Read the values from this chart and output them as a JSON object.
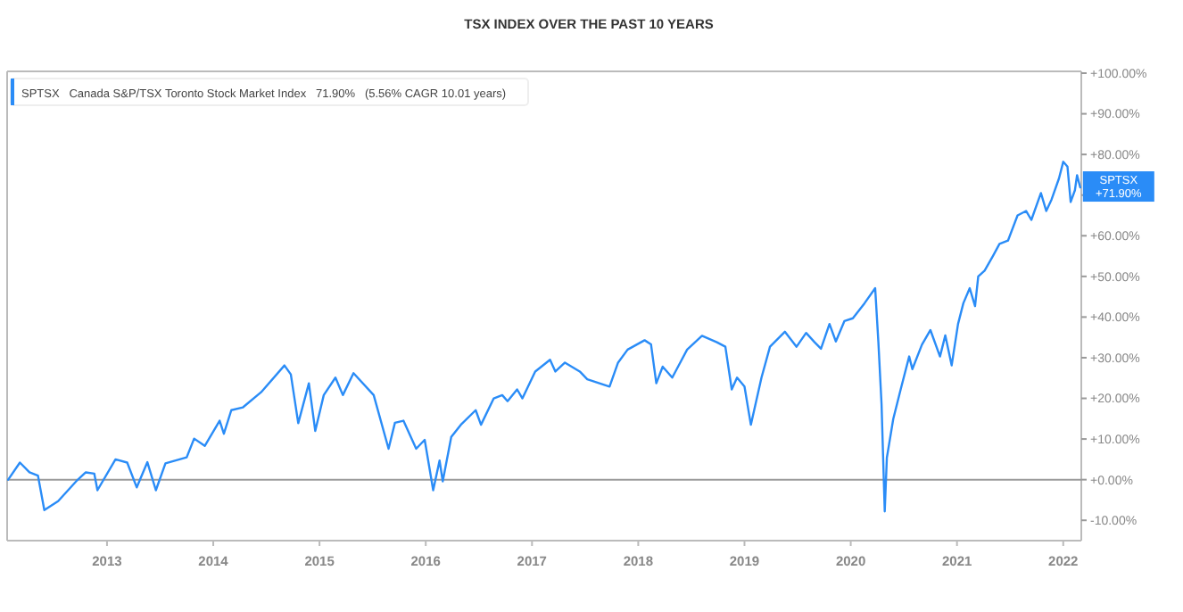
{
  "chart_data": {
    "type": "line",
    "title": "TSX INDEX OVER THE PAST 10 YEARS",
    "x": [
      2012.07,
      2012.18,
      2012.27,
      2012.35,
      2012.41,
      2012.54,
      2012.71,
      2012.8,
      2012.88,
      2012.91,
      2013.08,
      2013.19,
      2013.28,
      2013.38,
      2013.46,
      2013.55,
      2013.75,
      2013.82,
      2013.92,
      2014.06,
      2014.1,
      2014.17,
      2014.28,
      2014.45,
      2014.67,
      2014.73,
      2014.8,
      2014.9,
      2014.96,
      2015.04,
      2015.15,
      2015.22,
      2015.32,
      2015.51,
      2015.65,
      2015.71,
      2015.79,
      2015.91,
      2015.99,
      2016.07,
      2016.13,
      2016.16,
      2016.24,
      2016.33,
      2016.47,
      2016.52,
      2016.64,
      2016.72,
      2016.77,
      2016.86,
      2016.91,
      2017.03,
      2017.17,
      2017.22,
      2017.31,
      2017.45,
      2017.52,
      2017.73,
      2017.81,
      2017.9,
      2018.06,
      2018.12,
      2018.17,
      2018.23,
      2018.32,
      2018.46,
      2018.6,
      2018.74,
      2018.82,
      2018.88,
      2018.93,
      2019.0,
      2019.06,
      2019.16,
      2019.24,
      2019.38,
      2019.49,
      2019.58,
      2019.66,
      2019.72,
      2019.8,
      2019.86,
      2019.94,
      2020.02,
      2020.13,
      2020.23,
      2020.26,
      2020.29,
      2020.32,
      2020.34,
      2020.4,
      2020.47,
      2020.55,
      2020.58,
      2020.67,
      2020.75,
      2020.84,
      2020.89,
      2020.95,
      2021.01,
      2021.06,
      2021.12,
      2021.17,
      2021.2,
      2021.26,
      2021.34,
      2021.4,
      2021.48,
      2021.57,
      2021.65,
      2021.7,
      2021.79,
      2021.84,
      2021.89,
      2021.96,
      2022.0,
      2022.04,
      2022.07,
      2022.11,
      2022.13,
      2022.16
    ],
    "series": [
      {
        "name": "SPTSX   Canada S&P/TSX Toronto Stock Market Index   71.90%   (5.56% CAGR 10.01 years)",
        "color": "#2a8cf7",
        "values": [
          0,
          4.2,
          1.8,
          1,
          -7.5,
          -5.3,
          -0.4,
          1.8,
          1.5,
          -2.6,
          5,
          4.2,
          -1.9,
          4.3,
          -2.6,
          4,
          5.5,
          10.1,
          8.3,
          14.5,
          11.3,
          17.1,
          17.8,
          21.5,
          28.1,
          25.9,
          13.9,
          23.7,
          12,
          20.8,
          25.1,
          20.8,
          26.2,
          20.8,
          7.6,
          14,
          14.5,
          7.6,
          9.8,
          -2.6,
          4.7,
          -0.4,
          10.5,
          13.5,
          17.1,
          13.5,
          20,
          20.8,
          19.3,
          22.2,
          20,
          26.6,
          29.5,
          26.6,
          28.8,
          26.6,
          24.7,
          22.9,
          28.8,
          32,
          34.3,
          33.3,
          23.7,
          27.8,
          25.1,
          32,
          35.4,
          33.8,
          32.7,
          22.2,
          25.1,
          22.9,
          13.5,
          25.1,
          32.7,
          36.4,
          32.7,
          36.1,
          33.8,
          32.2,
          38.3,
          34,
          39,
          39.7,
          43.4,
          47.1,
          33.9,
          18.6,
          -7.8,
          5.4,
          14.9,
          22.2,
          30.3,
          27.2,
          33.2,
          36.8,
          30.3,
          35.5,
          28.1,
          38.3,
          43.4,
          47.1,
          42.7,
          50,
          51.4,
          55.1,
          58,
          58.8,
          65,
          66.1,
          63.9,
          70.5,
          66.1,
          68.9,
          74.1,
          78.2,
          77,
          68.3,
          71.2,
          74.9,
          71.9
        ]
      }
    ],
    "xlim": [
      2012.06,
      2022.17
    ],
    "xticks": [
      2013,
      2014,
      2015,
      2016,
      2017,
      2018,
      2019,
      2020,
      2021,
      2022
    ],
    "ylim": [
      -15,
      100
    ],
    "yticks": [
      {
        "value": -10,
        "label": "-10.00%"
      },
      {
        "value": 0,
        "label": "+0.00%"
      },
      {
        "value": 10,
        "label": "+10.00%"
      },
      {
        "value": 20,
        "label": "+20.00%"
      },
      {
        "value": 30,
        "label": "+30.00%"
      },
      {
        "value": 40,
        "label": "+40.00%"
      },
      {
        "value": 50,
        "label": "+50.00%"
      },
      {
        "value": 60,
        "label": "+60.00%"
      },
      {
        "value": 70,
        "label": null
      },
      {
        "value": 80,
        "label": "+80.00%"
      },
      {
        "value": 90,
        "label": "+90.00%"
      },
      {
        "value": 100,
        "label": "+100.00%"
      }
    ],
    "ref_lines": [
      {
        "axis": "y",
        "value": 0,
        "color": "#9a9a9a"
      }
    ],
    "annotations": [
      {
        "text": "SPTSX +71.90%",
        "x": 2022.16,
        "y": 71.9
      }
    ],
    "legend": "top left",
    "grid": false,
    "marker": "none",
    "line_style": "solid"
  }
}
